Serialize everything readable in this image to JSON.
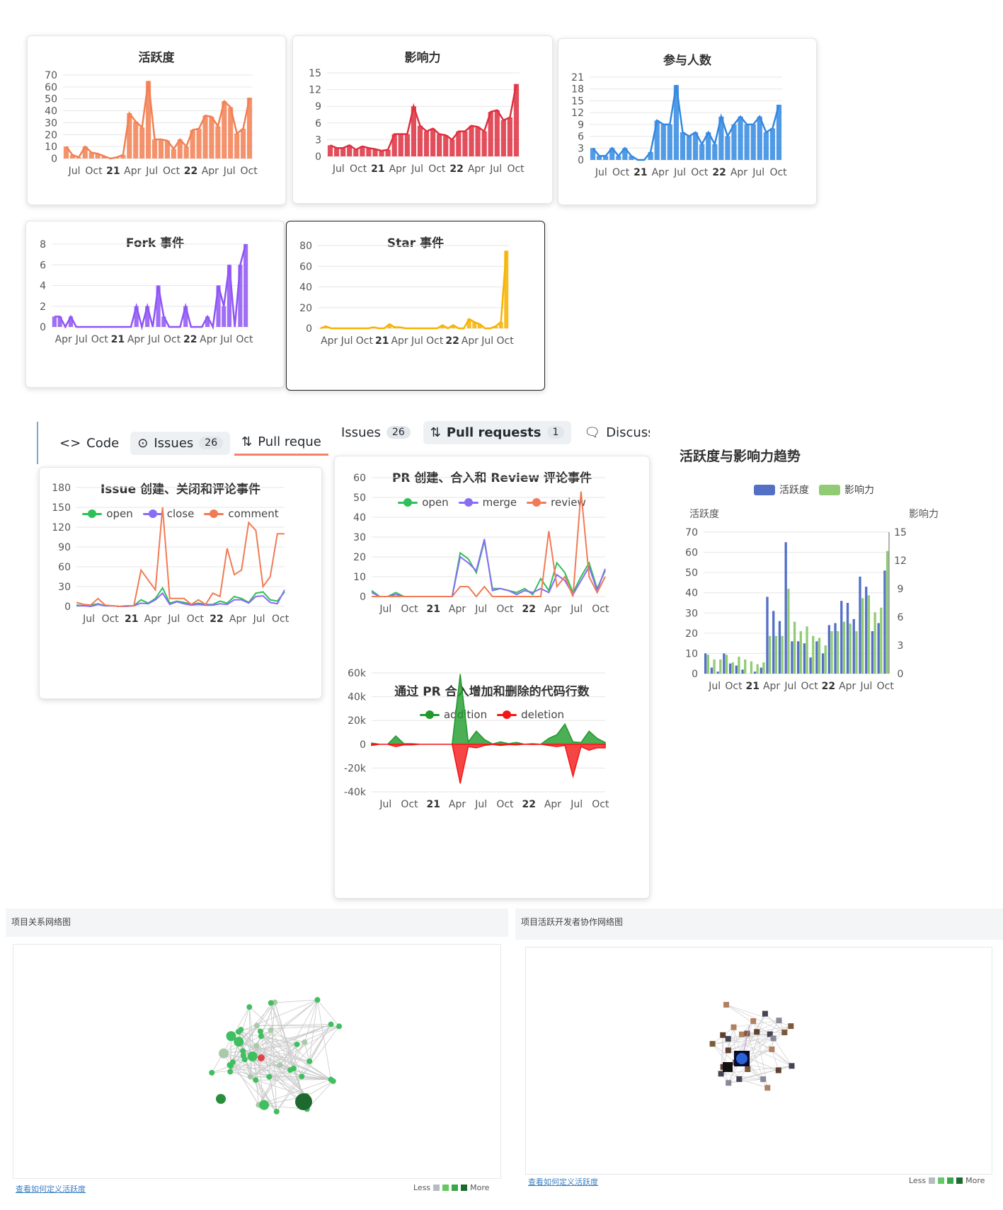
{
  "colors": {
    "activity": "#f27f52",
    "influence": "#de2f3f",
    "participants": "#3388e0",
    "fork": "#8f55f5",
    "star": "#f7b200",
    "open": "#2ec05a",
    "close": "#8a6cf5",
    "comment": "#f07b55",
    "addition": "#1f9a2b",
    "deletion": "#f21616",
    "bar_activity": "#5470c6",
    "bar_influence": "#91cc75"
  },
  "x_ticks_short": [
    "Jul",
    "Oct",
    "21",
    "Apr",
    "Jul",
    "Oct",
    "22",
    "Apr",
    "Jul",
    "Oct"
  ],
  "x_ticks_long": [
    "Apr",
    "Jul",
    "Oct",
    "21",
    "Apr",
    "Jul",
    "Oct",
    "22",
    "Apr",
    "Jul",
    "Oct"
  ],
  "issue_tabs": {
    "code": "Code",
    "issues": "Issues",
    "issues_count": "26",
    "pull": "Pull reque"
  },
  "pr_tabs": {
    "issues": "Issues",
    "issues_count": "26",
    "pull": "Pull requests",
    "pull_count": "1",
    "discuss": "Discussic"
  },
  "bottom": {
    "left_title": "项目关系网络图",
    "right_title": "项目活跃开发者协作网络图",
    "link": "查看如何定义活跃度",
    "less": "Less",
    "more": "More",
    "legend_colors": [
      "#b7bcc2",
      "#64c864",
      "#3aa64a",
      "#196c2e"
    ]
  },
  "chart_data": [
    {
      "id": "activity",
      "type": "bar",
      "title": "活跃度",
      "color": "#f27f52",
      "ylim": [
        0,
        70
      ],
      "yticks": [
        0,
        10,
        20,
        30,
        40,
        50,
        60,
        70
      ],
      "x_ticks": "short",
      "values": [
        10,
        3,
        1,
        10,
        5,
        4,
        2,
        0,
        1,
        3,
        38,
        31,
        26,
        65,
        16,
        16,
        15,
        8,
        16,
        10,
        24,
        25,
        36,
        35,
        27,
        48,
        43,
        21,
        25,
        51
      ]
    },
    {
      "id": "influence",
      "type": "bar",
      "title": "影响力",
      "color": "#de2f3f",
      "ylim": [
        0,
        15
      ],
      "yticks": [
        0,
        3,
        6,
        9,
        12,
        15
      ],
      "x_ticks": "short",
      "values": [
        2,
        1.5,
        1.5,
        2,
        1.2,
        1.8,
        1.5,
        1.3,
        1,
        1.2,
        4,
        4,
        4,
        9,
        5.5,
        4.5,
        5,
        4,
        3.8,
        3,
        4.5,
        4.5,
        5.5,
        5.3,
        4.5,
        8,
        8.3,
        6.5,
        7,
        13
      ]
    },
    {
      "id": "participants",
      "type": "bar",
      "title": "参与人数",
      "color": "#3388e0",
      "ylim": [
        0,
        21
      ],
      "yticks": [
        0,
        3,
        6,
        9,
        12,
        15,
        18,
        21
      ],
      "x_ticks": "short",
      "values": [
        3,
        1,
        1,
        3,
        1,
        3,
        1,
        0,
        0,
        2,
        10,
        9,
        9,
        19,
        7,
        6,
        7,
        4,
        7,
        4,
        11,
        6,
        9,
        11,
        9,
        9,
        11,
        7,
        8,
        14
      ]
    },
    {
      "id": "fork",
      "type": "bar",
      "title": "Fork 事件",
      "color": "#8f55f5",
      "ylim": [
        0,
        8
      ],
      "yticks": [
        0,
        2,
        4,
        6,
        8
      ],
      "x_ticks": "long",
      "values": [
        1,
        1,
        0,
        1,
        0,
        0,
        0,
        0,
        0,
        0,
        0,
        0,
        0,
        0,
        0,
        2,
        0,
        2,
        0,
        4,
        1,
        0,
        0,
        0,
        2,
        0,
        0,
        0,
        1,
        0,
        4,
        2,
        6,
        0,
        6,
        8
      ]
    },
    {
      "id": "star",
      "type": "bar",
      "title": "Star 事件",
      "color": "#f7b200",
      "ylim": [
        0,
        80
      ],
      "yticks": [
        0,
        20,
        40,
        60,
        80
      ],
      "x_ticks": "long",
      "values": [
        0,
        2,
        0,
        0,
        0,
        0,
        0,
        0,
        0,
        0,
        1,
        0,
        0,
        4,
        1,
        1,
        0,
        0,
        0,
        0,
        0,
        0,
        0,
        3,
        0,
        3,
        0,
        0,
        9,
        6,
        4,
        0,
        0,
        2,
        6,
        75
      ]
    },
    {
      "id": "issues",
      "type": "line",
      "title": "Issue 创建、关闭和评论事件",
      "ylim": [
        0,
        180
      ],
      "yticks": [
        0,
        30,
        60,
        90,
        120,
        150,
        180
      ],
      "x_ticks": "short",
      "series": [
        {
          "name": "open",
          "values": [
            2,
            1,
            2,
            4,
            1,
            1,
            0,
            1,
            1,
            10,
            5,
            12,
            28,
            5,
            8,
            6,
            3,
            5,
            3,
            3,
            8,
            5,
            15,
            12,
            6,
            20,
            22,
            10,
            8,
            22
          ]
        },
        {
          "name": "close",
          "values": [
            1,
            1,
            0,
            3,
            1,
            1,
            0,
            0,
            1,
            5,
            4,
            10,
            20,
            3,
            7,
            4,
            2,
            3,
            2,
            2,
            4,
            3,
            10,
            10,
            5,
            15,
            16,
            6,
            4,
            25
          ]
        },
        {
          "name": "comment",
          "values": [
            6,
            3,
            2,
            12,
            2,
            1,
            0,
            1,
            1,
            55,
            40,
            25,
            150,
            12,
            12,
            12,
            3,
            10,
            3,
            20,
            15,
            88,
            48,
            55,
            127,
            115,
            30,
            45,
            110,
            110
          ]
        }
      ]
    },
    {
      "id": "prs",
      "type": "line",
      "title": "PR 创建、合入和 Review 评论事件",
      "ylim": [
        0,
        60
      ],
      "yticks": [
        0,
        10,
        20,
        30,
        40,
        50,
        60
      ],
      "x_ticks": "short",
      "series": [
        {
          "name": "open",
          "values": [
            3,
            0,
            0,
            2,
            0,
            0,
            0,
            0,
            0,
            0,
            0,
            22,
            19,
            12,
            28,
            4,
            4,
            3,
            2,
            4,
            1,
            9,
            3,
            17,
            12,
            2,
            10,
            17,
            4,
            13
          ]
        },
        {
          "name": "merge",
          "values": [
            2,
            0,
            0,
            1,
            0,
            0,
            0,
            0,
            0,
            0,
            0,
            20,
            17,
            13,
            29,
            3,
            4,
            3,
            1,
            3,
            2,
            4,
            2,
            11,
            8,
            1,
            8,
            15,
            3,
            14
          ]
        },
        {
          "name": "review",
          "values": [
            0,
            0,
            0,
            0,
            0,
            0,
            0,
            0,
            0,
            0,
            0,
            5,
            5,
            0,
            5,
            0,
            0,
            0,
            0,
            0,
            0,
            0,
            33,
            5,
            10,
            0,
            53,
            10,
            2,
            10
          ]
        }
      ]
    },
    {
      "id": "codelines",
      "type": "area",
      "title": "通过 PR 合入增加和删除的代码行数",
      "ylim": [
        -40000,
        60000
      ],
      "yticks": [
        -40000,
        -20000,
        0,
        20000,
        40000,
        60000
      ],
      "ytick_labels": [
        "-40k",
        "-20k",
        "0",
        "20k",
        "40k",
        "60k"
      ],
      "x_ticks": "short",
      "series": [
        {
          "name": "addition",
          "values": [
            1000,
            0,
            0,
            7000,
            500,
            500,
            0,
            0,
            0,
            0,
            0,
            59000,
            2000,
            11000,
            4000,
            200,
            2000,
            500,
            1500,
            0,
            500,
            0,
            5000,
            8000,
            17000,
            2000,
            1500,
            11000,
            5000,
            1500
          ]
        },
        {
          "name": "deletion",
          "values": [
            -1000,
            0,
            0,
            -2000,
            -500,
            -500,
            0,
            0,
            0,
            0,
            0,
            -33000,
            -2000,
            -3000,
            -1000,
            -100,
            -1000,
            -300,
            -500,
            0,
            -200,
            0,
            -1000,
            -2000,
            -1000,
            -27000,
            -2000,
            -5000,
            -3000,
            -3000
          ]
        }
      ]
    },
    {
      "id": "trend",
      "type": "bar",
      "title": "活跃度与影响力趋势",
      "ylabel": "活跃度",
      "y2label": "影响力",
      "ylim": [
        0,
        70
      ],
      "y2lim": [
        0,
        15
      ],
      "yticks": [
        0,
        10,
        20,
        30,
        40,
        50,
        60,
        70
      ],
      "y2ticks": [
        0,
        3,
        6,
        9,
        12,
        15
      ],
      "x_ticks": "short",
      "series": [
        {
          "name": "活跃度",
          "axis": "left",
          "values": [
            10,
            3,
            1,
            10,
            5,
            4,
            2,
            0,
            1,
            3,
            38,
            31,
            26,
            65,
            16,
            16,
            15,
            8,
            16,
            10,
            24,
            25,
            36,
            35,
            27,
            48,
            43,
            21,
            25,
            51
          ]
        },
        {
          "name": "影响力",
          "axis": "right",
          "values": [
            2,
            1.5,
            1.5,
            2,
            1.2,
            1.8,
            1.5,
            1.3,
            1,
            1.2,
            4,
            4,
            4,
            9,
            5.5,
            4.5,
            5,
            4,
            3.8,
            3,
            4.5,
            4.5,
            5.5,
            5.3,
            4.5,
            8,
            8.3,
            6.5,
            7,
            13
          ]
        }
      ]
    }
  ]
}
